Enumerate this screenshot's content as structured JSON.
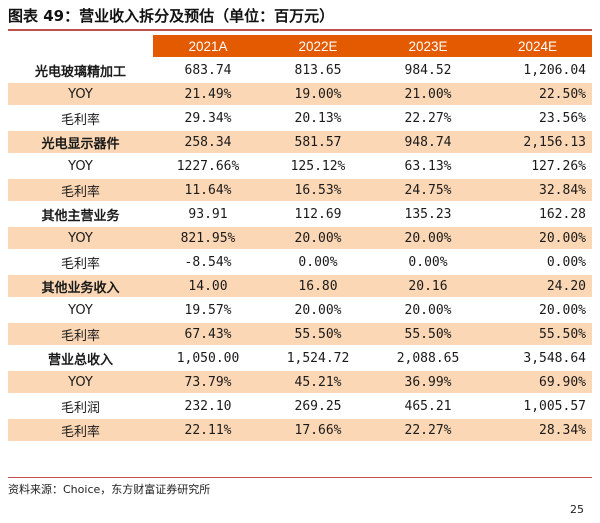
{
  "title": "图表 49：营业收入拆分及预估（单位：百万元）",
  "table": {
    "headers": [
      "",
      "2021A",
      "2022E",
      "2023E",
      "2024E"
    ],
    "rows": [
      {
        "label": "光电玻璃精加工",
        "bold": true,
        "shaded": false,
        "values": [
          "683.74",
          "813.65",
          "984.52",
          "1,206.04"
        ]
      },
      {
        "label": "YOY",
        "bold": false,
        "shaded": true,
        "values": [
          "21.49%",
          "19.00%",
          "21.00%",
          "22.50%"
        ]
      },
      {
        "label": "毛利率",
        "bold": false,
        "shaded": false,
        "values": [
          "29.34%",
          "20.13%",
          "22.27%",
          "23.56%"
        ]
      },
      {
        "label": "光电显示器件",
        "bold": true,
        "shaded": true,
        "values": [
          "258.34",
          "581.57",
          "948.74",
          "2,156.13"
        ]
      },
      {
        "label": "YOY",
        "bold": false,
        "shaded": false,
        "values": [
          "1227.66%",
          "125.12%",
          "63.13%",
          "127.26%"
        ]
      },
      {
        "label": "毛利率",
        "bold": false,
        "shaded": true,
        "values": [
          "11.64%",
          "16.53%",
          "24.75%",
          "32.84%"
        ]
      },
      {
        "label": "其他主营业务",
        "bold": true,
        "shaded": false,
        "values": [
          "93.91",
          "112.69",
          "135.23",
          "162.28"
        ]
      },
      {
        "label": "YOY",
        "bold": false,
        "shaded": true,
        "values": [
          "821.95%",
          "20.00%",
          "20.00%",
          "20.00%"
        ]
      },
      {
        "label": "毛利率",
        "bold": false,
        "shaded": false,
        "values": [
          "-8.54%",
          "0.00%",
          "0.00%",
          "0.00%"
        ]
      },
      {
        "label": "其他业务收入",
        "bold": true,
        "shaded": true,
        "values": [
          "14.00",
          "16.80",
          "20.16",
          "24.20"
        ]
      },
      {
        "label": "YOY",
        "bold": false,
        "shaded": false,
        "values": [
          "19.57%",
          "20.00%",
          "20.00%",
          "20.00%"
        ]
      },
      {
        "label": "毛利率",
        "bold": false,
        "shaded": true,
        "values": [
          "67.43%",
          "55.50%",
          "55.50%",
          "55.50%"
        ]
      },
      {
        "label": "营业总收入",
        "bold": true,
        "shaded": false,
        "values": [
          "1,050.00",
          "1,524.72",
          "2,088.65",
          "3,548.64"
        ]
      },
      {
        "label": "YOY",
        "bold": false,
        "shaded": true,
        "values": [
          "73.79%",
          "45.21%",
          "36.99%",
          "69.90%"
        ]
      },
      {
        "label": "毛利润",
        "bold": false,
        "shaded": false,
        "values": [
          "232.10",
          "269.25",
          "465.21",
          "1,005.57"
        ]
      },
      {
        "label": "毛利率",
        "bold": false,
        "shaded": true,
        "values": [
          "22.11%",
          "17.66%",
          "22.27%",
          "28.34%"
        ]
      }
    ]
  },
  "source": "资料来源：Choice，东方财富证券研究所",
  "page_number": "25",
  "colors": {
    "header": "#e35a00",
    "shade": "#fbd7b5",
    "rule": "#c0504d"
  }
}
